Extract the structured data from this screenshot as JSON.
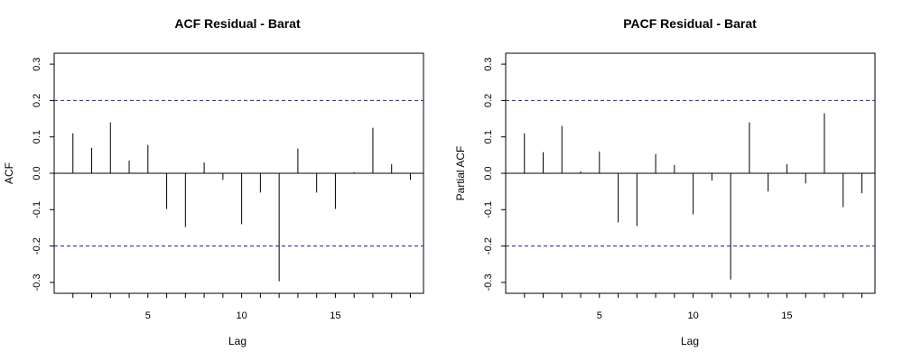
{
  "chart_data": [
    {
      "type": "bar",
      "title": "ACF Residual - Barat",
      "xlabel": "Lag",
      "ylabel": "ACF",
      "xlim": [
        0,
        19.7
      ],
      "ylim": [
        -0.33,
        0.33
      ],
      "x_ticks": [
        5,
        10,
        15
      ],
      "y_ticks": [
        -0.3,
        -0.2,
        -0.1,
        0.0,
        0.1,
        0.2,
        0.3
      ],
      "y_tick_labels": [
        "-0.3",
        "-0.2",
        "-0.1",
        "0.0",
        "0.1",
        "0.2",
        "0.3"
      ],
      "confidence_bound": 0.2,
      "colors": {
        "bound": "#1f1f8f",
        "bar": "#000000"
      },
      "lags": [
        1,
        2,
        3,
        4,
        5,
        6,
        7,
        8,
        9,
        10,
        11,
        12,
        13,
        14,
        15,
        16,
        17,
        18,
        19
      ],
      "values": [
        0.11,
        0.07,
        0.14,
        0.035,
        0.078,
        -0.098,
        -0.148,
        0.03,
        -0.018,
        -0.14,
        -0.053,
        -0.297,
        0.068,
        -0.053,
        -0.098,
        0.003,
        0.125,
        0.025,
        -0.018
      ],
      "grid": false
    },
    {
      "type": "bar",
      "title": "PACF Residual - Barat",
      "xlabel": "Lag",
      "ylabel": "Partial ACF",
      "xlim": [
        0,
        19.7
      ],
      "ylim": [
        -0.33,
        0.33
      ],
      "x_ticks": [
        5,
        10,
        15
      ],
      "y_ticks": [
        -0.3,
        -0.2,
        -0.1,
        0.0,
        0.1,
        0.2,
        0.3
      ],
      "y_tick_labels": [
        "-0.3",
        "-0.2",
        "-0.1",
        "0.0",
        "0.1",
        "0.2",
        "0.3"
      ],
      "confidence_bound": 0.2,
      "colors": {
        "bound": "#1f1f8f",
        "bar": "#000000"
      },
      "lags": [
        1,
        2,
        3,
        4,
        5,
        6,
        7,
        8,
        9,
        10,
        11,
        12,
        13,
        14,
        15,
        16,
        17,
        18,
        19
      ],
      "values": [
        0.11,
        0.058,
        0.13,
        0.005,
        0.06,
        -0.135,
        -0.145,
        0.053,
        0.023,
        -0.113,
        -0.02,
        -0.292,
        0.14,
        -0.05,
        0.025,
        -0.028,
        0.165,
        -0.093,
        -0.055
      ],
      "grid": false
    }
  ]
}
